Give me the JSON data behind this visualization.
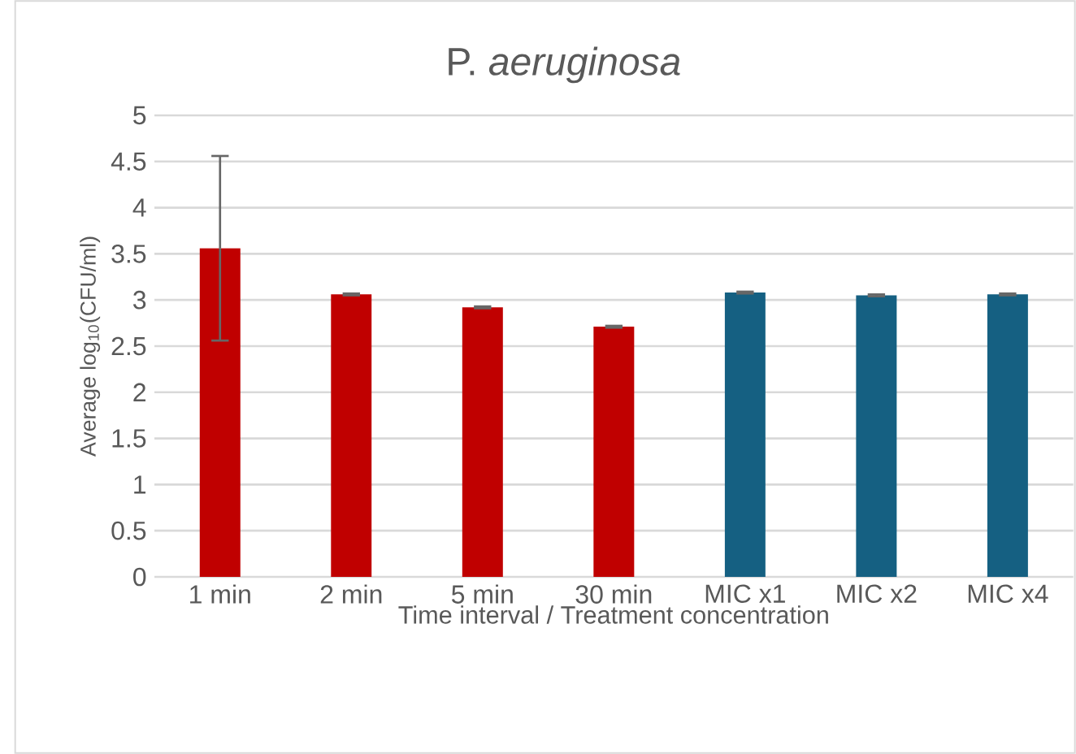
{
  "chart_data": {
    "type": "bar",
    "title": "P. *aeruginosa*",
    "xlabel": "Time interval / Treatment concentration",
    "ylabel": "Average log$_{10}$(CFU/ml)",
    "categories": [
      "1 min",
      "2 min",
      "5 min",
      "30 min",
      "MIC x1",
      "MIC x2",
      "MIC x4"
    ],
    "values": [
      3.56,
      3.06,
      2.92,
      2.71,
      3.08,
      3.05,
      3.06
    ],
    "errors": [
      1.0,
      0.01,
      0.01,
      0.01,
      0.01,
      0.01,
      0.01
    ],
    "colors": [
      "#c00000",
      "#c00000",
      "#c00000",
      "#c00000",
      "#156082",
      "#156082",
      "#156082"
    ],
    "ylim": [
      0,
      5
    ],
    "yticks": [
      0,
      0.5,
      1,
      1.5,
      2,
      2.5,
      3,
      3.5,
      4,
      4.5,
      5
    ],
    "grid": "y"
  }
}
